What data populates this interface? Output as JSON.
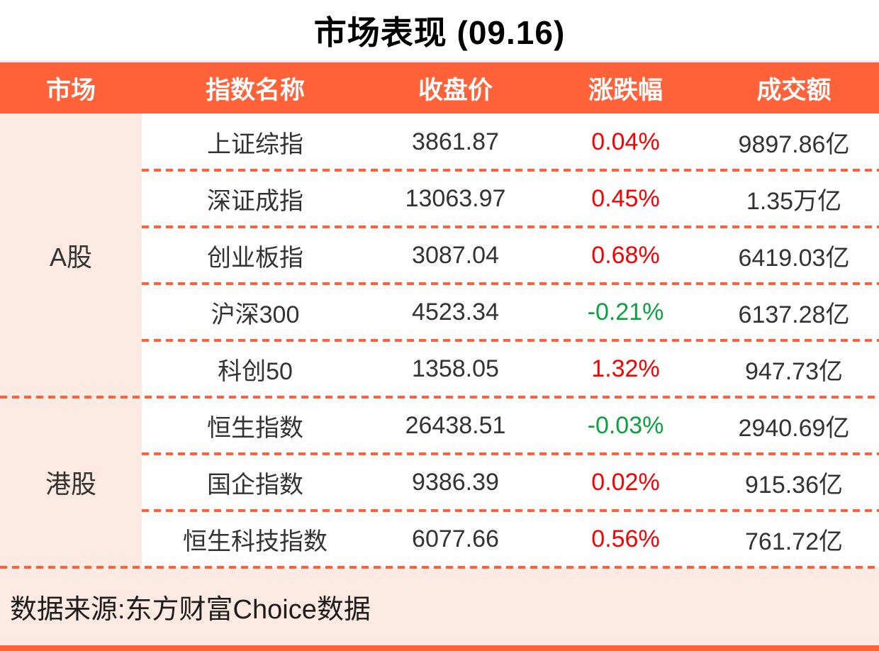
{
  "title": "市场表现 (09.16)",
  "colors": {
    "accent": "#FF6138",
    "pink_bg": "#FDEAE3",
    "up": "#FA0000",
    "down": "#0BA340",
    "text": "#333333"
  },
  "table": {
    "columns": [
      "市场",
      "指数名称",
      "收盘价",
      "涨跌幅",
      "成交额"
    ],
    "groups": [
      {
        "market": "A股",
        "rows": [
          {
            "name": "上证综指",
            "close": "3861.87",
            "change": "0.04%",
            "direction": "up",
            "turnover": "9897.86亿"
          },
          {
            "name": "深证成指",
            "close": "13063.97",
            "change": "0.45%",
            "direction": "up",
            "turnover": "1.35万亿"
          },
          {
            "name": "创业板指",
            "close": "3087.04",
            "change": "0.68%",
            "direction": "up",
            "turnover": "6419.03亿"
          },
          {
            "name": "沪深300",
            "close": "4523.34",
            "change": "-0.21%",
            "direction": "down",
            "turnover": "6137.28亿"
          },
          {
            "name": "科创50",
            "close": "1358.05",
            "change": "1.32%",
            "direction": "up",
            "turnover": "947.73亿"
          }
        ]
      },
      {
        "market": "港股",
        "rows": [
          {
            "name": "恒生指数",
            "close": "26438.51",
            "change": "-0.03%",
            "direction": "down",
            "turnover": "2940.69亿"
          },
          {
            "name": "国企指数",
            "close": "9386.39",
            "change": "0.02%",
            "direction": "up",
            "turnover": "915.36亿"
          },
          {
            "name": "恒生科技指数",
            "close": "6077.66",
            "change": "0.56%",
            "direction": "up",
            "turnover": "761.72亿"
          }
        ]
      }
    ]
  },
  "footer": {
    "source": "数据来源:东方财富Choice数据"
  },
  "chart_data": {
    "type": "table",
    "title": "市场表现 (09.16)",
    "columns": [
      "市场",
      "指数名称",
      "收盘价",
      "涨跌幅",
      "成交额"
    ],
    "rows": [
      [
        "A股",
        "上证综指",
        3861.87,
        "0.04%",
        "9897.86亿"
      ],
      [
        "A股",
        "深证成指",
        13063.97,
        "0.45%",
        "1.35万亿"
      ],
      [
        "A股",
        "创业板指",
        3087.04,
        "0.68%",
        "6419.03亿"
      ],
      [
        "A股",
        "沪深300",
        4523.34,
        "-0.21%",
        "6137.28亿"
      ],
      [
        "A股",
        "科创50",
        1358.05,
        "1.32%",
        "947.73亿"
      ],
      [
        "港股",
        "恒生指数",
        26438.51,
        "-0.03%",
        "2940.69亿"
      ],
      [
        "港股",
        "国企指数",
        9386.39,
        "0.02%",
        "915.36亿"
      ],
      [
        "港股",
        "恒生科技指数",
        6077.66,
        "0.56%",
        "761.72亿"
      ]
    ],
    "notes": "涨跌幅 positive values shown in red, negative in green (CN convention); source line: 数据来源:东方财富Choice数据"
  }
}
